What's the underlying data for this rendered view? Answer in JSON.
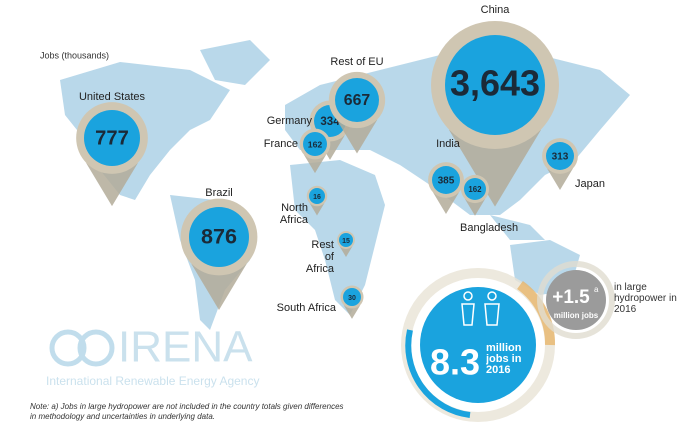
{
  "legend_label": "Jobs (thousands)",
  "markers": [
    {
      "name": "United States",
      "value": "777"
    },
    {
      "name": "Brazil",
      "value": "876"
    },
    {
      "name": "Germany",
      "value": "334"
    },
    {
      "name": "France",
      "value": "162"
    },
    {
      "name": "Rest of EU",
      "value": "667"
    },
    {
      "name": "China",
      "value": "3,643"
    },
    {
      "name": "India",
      "value": "385"
    },
    {
      "name": "Bangladesh",
      "value": "162"
    },
    {
      "name": "Japan",
      "value": "313"
    },
    {
      "name": "North Africa",
      "value": "16"
    },
    {
      "name": "Rest of Africa",
      "value": "15"
    },
    {
      "name": "South Africa",
      "value": "30"
    }
  ],
  "total": {
    "value": "8.3",
    "label": "million jobs in 2016"
  },
  "hydropower": {
    "value": "+1.5",
    "note_mark": "a",
    "unit": "million jobs",
    "label": "in large hydropower in 2016"
  },
  "logo": {
    "name": "IRENA",
    "subtitle": "International Renewable Energy Agency"
  },
  "footnote": "Note: a) Jobs in large hydropower are not included in the country totals given differences in methodology and uncertainties in underlying data."
}
